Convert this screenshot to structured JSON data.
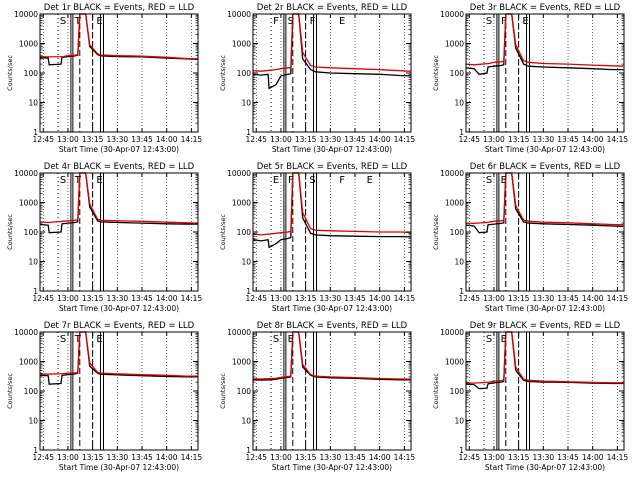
{
  "figure": {
    "xlabel": "Start Time (30-Apr-07 12:43:00)",
    "ylabel": "Counts/sec",
    "series_names": [
      "Events",
      "LLD"
    ],
    "colors": {
      "events": "#000000",
      "lld": "#e00000",
      "axes": "#000000",
      "background": "#ffffff"
    }
  },
  "chart_data": [
    {
      "type": "line",
      "title": "Det 1r BLACK = Events, RED = LLD",
      "event_labels": [
        "S",
        "T",
        "E"
      ],
      "x_ticks": [
        "12:45",
        "13:00",
        "13:15",
        "13:30",
        "13:45",
        "14:00",
        "14:15"
      ],
      "y_ticks": [
        "1",
        "10",
        "100",
        "1000",
        "10000"
      ],
      "xlim": [
        12.717,
        14.317
      ],
      "ylim": [
        1,
        10000
      ],
      "yscale": "log",
      "series": [
        {
          "name": "Events",
          "x": [
            12.72,
            12.8,
            12.81,
            12.93,
            12.94,
            13.0,
            13.07,
            13.1,
            13.12,
            13.17,
            13.18,
            13.22,
            13.3,
            13.33,
            13.5,
            13.75,
            14.0,
            14.2,
            14.31
          ],
          "y": [
            330,
            320,
            190,
            200,
            340,
            360,
            380,
            400,
            10000,
            10000,
            10000,
            800,
            420,
            380,
            360,
            350,
            320,
            300,
            290
          ]
        },
        {
          "name": "LLD",
          "x": [
            12.72,
            12.8,
            12.95,
            13.0,
            13.07,
            13.1,
            13.12,
            13.17,
            13.18,
            13.22,
            13.3,
            13.33,
            13.5,
            13.75,
            14.0,
            14.2,
            14.31
          ],
          "y": [
            360,
            350,
            360,
            390,
            400,
            420,
            10000,
            10000,
            10000,
            900,
            450,
            410,
            390,
            370,
            340,
            310,
            300
          ]
        }
      ]
    },
    {
      "type": "line",
      "title": "Det 2r BLACK = Events, RED = LLD",
      "event_labels": [
        "F",
        "S",
        "F",
        "E"
      ],
      "x_ticks": [
        "12:45",
        "13:00",
        "13:15",
        "13:30",
        "13:45",
        "14:00",
        "14:15"
      ],
      "y_ticks": [
        "1",
        "10",
        "100",
        "1000",
        "10000"
      ],
      "xlim": [
        12.717,
        14.317
      ],
      "ylim": [
        1,
        10000
      ],
      "yscale": "log",
      "series": [
        {
          "name": "Events",
          "x": [
            12.72,
            12.8,
            12.87,
            12.88,
            12.95,
            13.0,
            13.07,
            13.1,
            13.12,
            13.17,
            13.18,
            13.22,
            13.3,
            13.35,
            13.5,
            13.75,
            14.0,
            14.2,
            14.31
          ],
          "y": [
            90,
            85,
            90,
            30,
            40,
            80,
            90,
            95,
            10000,
            10000,
            10000,
            300,
            130,
            110,
            100,
            95,
            90,
            82,
            80
          ]
        },
        {
          "name": "LLD",
          "x": [
            12.72,
            12.8,
            12.95,
            13.0,
            13.07,
            13.1,
            13.12,
            13.17,
            13.18,
            13.22,
            13.3,
            13.35,
            13.5,
            13.75,
            14.0,
            14.2,
            14.31
          ],
          "y": [
            120,
            115,
            130,
            140,
            150,
            150,
            10000,
            10000,
            10000,
            500,
            180,
            160,
            150,
            140,
            130,
            120,
            115
          ]
        }
      ]
    },
    {
      "type": "line",
      "title": "Det 3r BLACK = Events, RED = LLD",
      "event_labels": [
        "S",
        "F",
        "E"
      ],
      "x_ticks": [
        "12:45",
        "13:00",
        "13:15",
        "13:30",
        "13:45",
        "14:00",
        "14:15"
      ],
      "y_ticks": [
        "1",
        "10",
        "100",
        "1000",
        "10000"
      ],
      "xlim": [
        12.717,
        14.317
      ],
      "ylim": [
        1,
        10000
      ],
      "yscale": "log",
      "series": [
        {
          "name": "Events",
          "x": [
            12.72,
            12.8,
            12.85,
            12.93,
            12.94,
            13.0,
            13.07,
            13.1,
            13.12,
            13.17,
            13.18,
            13.22,
            13.3,
            13.35,
            13.5,
            13.75,
            14.0,
            14.2,
            14.31
          ],
          "y": [
            150,
            140,
            90,
            100,
            160,
            170,
            180,
            190,
            10000,
            10000,
            10000,
            700,
            200,
            170,
            160,
            150,
            140,
            130,
            130
          ]
        },
        {
          "name": "LLD",
          "x": [
            12.72,
            12.8,
            12.95,
            13.0,
            13.07,
            13.1,
            13.12,
            13.17,
            13.18,
            13.22,
            13.3,
            13.35,
            13.5,
            13.75,
            14.0,
            14.2,
            14.31
          ],
          "y": [
            200,
            190,
            210,
            230,
            240,
            250,
            10000,
            10000,
            10000,
            900,
            260,
            230,
            210,
            200,
            185,
            175,
            170
          ]
        }
      ]
    },
    {
      "type": "line",
      "title": "Det 4r BLACK = Events, RED = LLD",
      "event_labels": [
        "S",
        "T",
        "E"
      ],
      "x_ticks": [
        "12:45",
        "13:00",
        "13:15",
        "13:30",
        "13:45",
        "14:00",
        "14:15"
      ],
      "y_ticks": [
        "1",
        "10",
        "100",
        "1000",
        "10000"
      ],
      "xlim": [
        12.717,
        14.317
      ],
      "ylim": [
        1,
        10000
      ],
      "yscale": "log",
      "series": [
        {
          "name": "Events",
          "x": [
            12.72,
            12.8,
            12.81,
            12.93,
            12.94,
            13.0,
            13.07,
            13.1,
            13.12,
            13.17,
            13.18,
            13.22,
            13.3,
            13.33,
            13.5,
            13.75,
            14.0,
            14.2,
            14.31
          ],
          "y": [
            180,
            170,
            95,
            100,
            190,
            200,
            210,
            220,
            10000,
            10000,
            10000,
            700,
            240,
            220,
            210,
            200,
            190,
            185,
            185
          ]
        },
        {
          "name": "LLD",
          "x": [
            12.72,
            12.8,
            12.95,
            13.0,
            13.07,
            13.1,
            13.12,
            13.17,
            13.18,
            13.22,
            13.3,
            13.33,
            13.5,
            13.75,
            14.0,
            14.2,
            14.31
          ],
          "y": [
            220,
            210,
            230,
            240,
            250,
            260,
            10000,
            10000,
            10000,
            900,
            270,
            250,
            240,
            230,
            215,
            205,
            200
          ]
        }
      ]
    },
    {
      "type": "line",
      "title": "Det 5r BLACK = Events, RED = LLD",
      "event_labels": [
        "E",
        "F",
        "S",
        "F",
        "E"
      ],
      "x_ticks": [
        "12:45",
        "13:00",
        "13:15",
        "13:30",
        "13:45",
        "14:00",
        "14:15"
      ],
      "y_ticks": [
        "1",
        "10",
        "100",
        "1000",
        "10000"
      ],
      "xlim": [
        12.717,
        14.317
      ],
      "ylim": [
        1,
        10000
      ],
      "yscale": "log",
      "series": [
        {
          "name": "Events",
          "x": [
            12.72,
            12.8,
            12.87,
            12.88,
            12.95,
            13.0,
            13.07,
            13.1,
            13.12,
            13.17,
            13.18,
            13.22,
            13.3,
            13.35,
            13.5,
            13.75,
            14.0,
            14.2,
            14.31
          ],
          "y": [
            55,
            50,
            55,
            30,
            40,
            55,
            60,
            65,
            10000,
            10000,
            10000,
            300,
            90,
            80,
            75,
            72,
            70,
            70,
            68
          ]
        },
        {
          "name": "LLD",
          "x": [
            12.72,
            12.8,
            12.95,
            13.0,
            13.07,
            13.1,
            13.12,
            13.17,
            13.18,
            13.22,
            13.3,
            13.35,
            13.5,
            13.75,
            14.0,
            14.2,
            14.31
          ],
          "y": [
            85,
            80,
            90,
            95,
            100,
            105,
            10000,
            10000,
            10000,
            450,
            130,
            115,
            110,
            105,
            100,
            100,
            98
          ]
        }
      ]
    },
    {
      "type": "line",
      "title": "Det 6r BLACK = Events, RED = LLD",
      "event_labels": [
        "S",
        "E"
      ],
      "x_ticks": [
        "12:45",
        "13:00",
        "13:15",
        "13:30",
        "13:45",
        "14:00",
        "14:15"
      ],
      "y_ticks": [
        "1",
        "10",
        "100",
        "1000",
        "10000"
      ],
      "xlim": [
        12.717,
        14.317
      ],
      "ylim": [
        1,
        10000
      ],
      "yscale": "log",
      "series": [
        {
          "name": "Events",
          "x": [
            12.72,
            12.8,
            12.85,
            12.93,
            12.94,
            13.0,
            13.07,
            13.1,
            13.12,
            13.17,
            13.18,
            13.22,
            13.3,
            13.35,
            13.5,
            13.75,
            14.0,
            14.2,
            14.31
          ],
          "y": [
            170,
            160,
            95,
            100,
            175,
            185,
            195,
            205,
            10000,
            10000,
            10000,
            600,
            220,
            200,
            190,
            180,
            170,
            160,
            155
          ]
        },
        {
          "name": "LLD",
          "x": [
            12.72,
            12.8,
            12.95,
            13.0,
            13.07,
            13.1,
            13.12,
            13.17,
            13.18,
            13.22,
            13.3,
            13.35,
            13.5,
            13.75,
            14.0,
            14.2,
            14.31
          ],
          "y": [
            200,
            195,
            215,
            230,
            240,
            250,
            10000,
            10000,
            10000,
            800,
            250,
            230,
            215,
            205,
            190,
            180,
            175
          ]
        }
      ]
    },
    {
      "type": "line",
      "title": "Det 7r BLACK = Events, RED = LLD",
      "event_labels": [
        "S",
        "T",
        "E"
      ],
      "x_ticks": [
        "12:45",
        "13:00",
        "13:15",
        "13:30",
        "13:45",
        "14:00",
        "14:15"
      ],
      "y_ticks": [
        "1",
        "10",
        "100",
        "1000",
        "10000"
      ],
      "xlim": [
        12.717,
        14.317
      ],
      "ylim": [
        1,
        10000
      ],
      "yscale": "log",
      "series": [
        {
          "name": "Events",
          "x": [
            12.72,
            12.8,
            12.81,
            12.93,
            12.94,
            13.0,
            13.07,
            13.1,
            13.12,
            13.17,
            13.18,
            13.22,
            13.3,
            13.33,
            13.5,
            13.75,
            14.0,
            14.2,
            14.31
          ],
          "y": [
            340,
            330,
            170,
            180,
            340,
            360,
            380,
            400,
            10000,
            10000,
            10000,
            700,
            400,
            370,
            350,
            330,
            310,
            300,
            300
          ]
        },
        {
          "name": "LLD",
          "x": [
            12.72,
            12.8,
            12.95,
            13.0,
            13.07,
            13.1,
            13.12,
            13.17,
            13.18,
            13.22,
            13.3,
            13.33,
            13.5,
            13.75,
            14.0,
            14.2,
            14.31
          ],
          "y": [
            380,
            370,
            390,
            400,
            410,
            420,
            10000,
            10000,
            10000,
            900,
            430,
            400,
            380,
            360,
            340,
            320,
            320
          ]
        }
      ]
    },
    {
      "type": "line",
      "title": "Det 8r BLACK = Events, RED = LLD",
      "event_labels": [
        "S",
        "E"
      ],
      "x_ticks": [
        "12:45",
        "13:00",
        "13:15",
        "13:30",
        "13:45",
        "14:00",
        "14:15"
      ],
      "y_ticks": [
        "1",
        "10",
        "100",
        "1000",
        "10000"
      ],
      "xlim": [
        12.717,
        14.317
      ],
      "ylim": [
        1,
        10000
      ],
      "yscale": "log",
      "series": [
        {
          "name": "Events",
          "x": [
            12.72,
            12.8,
            12.88,
            12.95,
            13.0,
            13.07,
            13.1,
            13.12,
            13.17,
            13.18,
            13.22,
            13.3,
            13.35,
            13.5,
            13.75,
            14.0,
            14.2,
            14.31
          ],
          "y": [
            240,
            235,
            240,
            250,
            270,
            290,
            300,
            10000,
            10000,
            10000,
            650,
            340,
            300,
            280,
            270,
            250,
            240,
            240
          ]
        },
        {
          "name": "LLD",
          "x": [
            12.72,
            12.8,
            12.95,
            13.0,
            13.07,
            13.1,
            13.12,
            13.17,
            13.18,
            13.22,
            13.3,
            13.35,
            13.5,
            13.75,
            14.0,
            14.2,
            14.31
          ],
          "y": [
            260,
            255,
            270,
            290,
            310,
            320,
            10000,
            10000,
            10000,
            800,
            360,
            320,
            300,
            285,
            265,
            255,
            255
          ]
        }
      ]
    },
    {
      "type": "line",
      "title": "Det 9r BLACK = Events, RED = LLD",
      "event_labels": [
        "S",
        "E"
      ],
      "x_ticks": [
        "12:45",
        "13:00",
        "13:15",
        "13:30",
        "13:45",
        "14:00",
        "14:15"
      ],
      "y_ticks": [
        "1",
        "10",
        "100",
        "1000",
        "10000"
      ],
      "xlim": [
        12.717,
        14.317
      ],
      "ylim": [
        1,
        10000
      ],
      "yscale": "log",
      "series": [
        {
          "name": "Events",
          "x": [
            12.72,
            12.8,
            12.85,
            12.93,
            12.94,
            13.0,
            13.07,
            13.1,
            13.12,
            13.17,
            13.18,
            13.22,
            13.3,
            13.35,
            13.5,
            13.75,
            14.0,
            14.2,
            14.31
          ],
          "y": [
            170,
            165,
            120,
            125,
            175,
            190,
            200,
            210,
            10000,
            10000,
            10000,
            500,
            230,
            210,
            200,
            195,
            185,
            180,
            180
          ]
        },
        {
          "name": "LLD",
          "x": [
            12.72,
            12.8,
            12.95,
            13.0,
            13.07,
            13.1,
            13.12,
            13.17,
            13.18,
            13.22,
            13.3,
            13.35,
            13.5,
            13.75,
            14.0,
            14.2,
            14.31
          ],
          "y": [
            190,
            185,
            200,
            215,
            225,
            235,
            10000,
            10000,
            10000,
            650,
            250,
            230,
            215,
            205,
            195,
            190,
            190
          ]
        }
      ]
    }
  ]
}
